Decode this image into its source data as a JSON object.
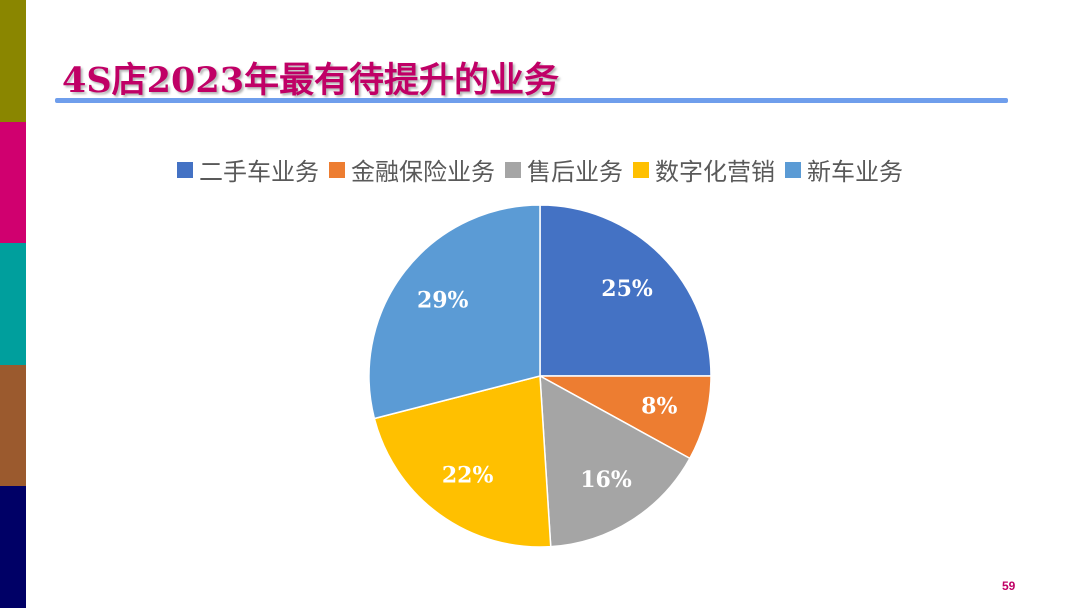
{
  "slide": {
    "title": "4S店2023年最有待提升的业务",
    "title_color": "#c00066",
    "rule_color": "#6f9eec",
    "page_number": "59",
    "page_number_color": "#c00066",
    "side_bar_colors": [
      "#8a8600",
      "#d0006f",
      "#009f9d",
      "#9b5a2e",
      "#000066"
    ]
  },
  "chart_data": {
    "type": "pie",
    "title": "",
    "start_angle_deg": 0,
    "direction": "clockwise",
    "legend_position": "top",
    "slices": [
      {
        "name": "二手车业务",
        "value": 25,
        "label": "25%",
        "color": "#4472c4"
      },
      {
        "name": "金融保险业务",
        "value": 8,
        "label": "8%",
        "color": "#ed7d31"
      },
      {
        "name": "售后业务",
        "value": 16,
        "label": "16%",
        "color": "#a5a5a5"
      },
      {
        "name": "数字化营销",
        "value": 22,
        "label": "22%",
        "color": "#ffc000"
      },
      {
        "name": "新车业务",
        "value": 29,
        "label": "29%",
        "color": "#5b9bd5"
      }
    ]
  }
}
